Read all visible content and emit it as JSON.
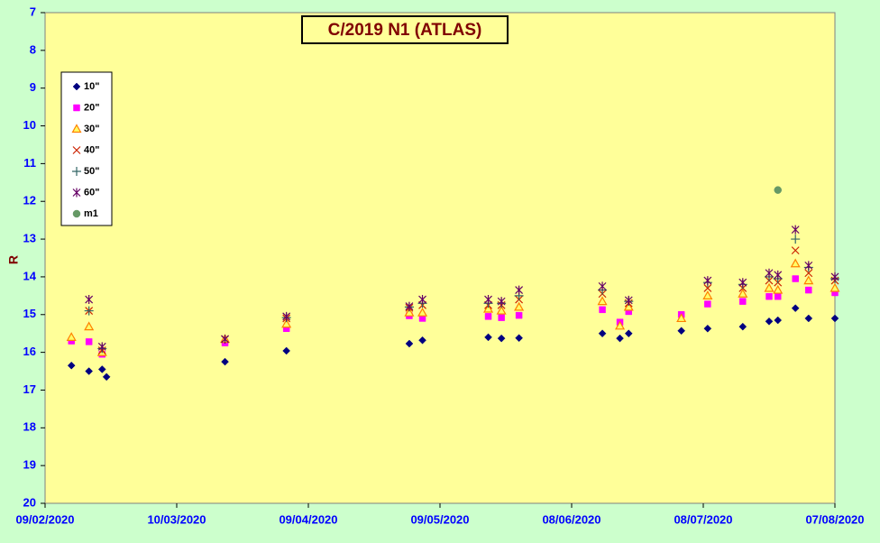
{
  "chart_data": {
    "type": "scatter",
    "title": "C/2019 N1 (ATLAS)",
    "y_label": "R",
    "x": [
      "2020-02-15",
      "2020-02-19",
      "2020-02-22",
      "2020-02-23",
      "2020-03-21",
      "2020-04-04",
      "2020-05-02",
      "2020-05-05",
      "2020-05-20",
      "2020-05-23",
      "2020-05-27",
      "2020-06-15",
      "2020-06-19",
      "2020-06-21",
      "2020-07-03",
      "2020-07-09",
      "2020-07-17",
      "2020-07-23",
      "2020-07-25",
      "2020-07-29",
      "2020-08-01",
      "2020-08-07"
    ],
    "series": [
      {
        "name": "10\"",
        "color": "#000080",
        "marker": "diamond",
        "values": [
          16.35,
          16.5,
          16.45,
          16.65,
          16.25,
          15.96,
          15.77,
          15.68,
          15.6,
          15.63,
          15.62,
          15.5,
          15.63,
          15.5,
          15.43,
          15.37,
          15.32,
          15.18,
          15.15,
          14.83,
          15.1,
          15.1
        ]
      },
      {
        "name": "20\"",
        "color": "#ff00ff",
        "marker": "square",
        "values": [
          15.7,
          15.72,
          16.05,
          null,
          15.75,
          15.37,
          15.03,
          15.1,
          15.05,
          15.08,
          15.02,
          14.87,
          15.2,
          14.92,
          15.0,
          14.72,
          14.65,
          14.52,
          14.52,
          14.05,
          14.35,
          14.42
        ]
      },
      {
        "name": "30\"",
        "color": "#ff8000",
        "marker": "triangle",
        "values": [
          15.6,
          15.32,
          16.0,
          null,
          15.65,
          15.25,
          14.95,
          14.95,
          14.85,
          14.9,
          14.8,
          14.65,
          15.3,
          14.8,
          15.1,
          14.5,
          14.45,
          14.3,
          14.35,
          13.65,
          14.1,
          14.3
        ]
      },
      {
        "name": "40\"",
        "color": "#cc2200",
        "marker": "x",
        "values": [
          null,
          14.9,
          15.95,
          null,
          15.65,
          15.1,
          14.82,
          14.75,
          14.75,
          14.75,
          14.6,
          14.45,
          null,
          14.7,
          null,
          14.3,
          14.3,
          14.1,
          14.15,
          13.3,
          13.9,
          14.1
        ]
      },
      {
        "name": "50\"",
        "color": "#336666",
        "marker": "plus",
        "values": [
          null,
          14.9,
          15.9,
          null,
          null,
          15.08,
          14.8,
          14.7,
          14.7,
          14.7,
          14.5,
          14.35,
          null,
          14.65,
          null,
          14.15,
          14.2,
          14.0,
          14.05,
          13.0,
          13.75,
          14.05
        ]
      },
      {
        "name": "60\"",
        "color": "#660066",
        "marker": "star",
        "values": [
          null,
          14.6,
          15.85,
          null,
          15.65,
          15.05,
          14.78,
          14.6,
          14.6,
          14.65,
          14.35,
          14.25,
          null,
          14.62,
          null,
          14.1,
          14.15,
          13.9,
          13.95,
          12.75,
          13.7,
          14.0
        ]
      },
      {
        "name": "m1",
        "color": "#669966",
        "marker": "circle",
        "values": [
          null,
          null,
          null,
          null,
          null,
          null,
          null,
          null,
          null,
          null,
          null,
          null,
          null,
          null,
          null,
          null,
          null,
          null,
          11.7,
          null,
          null,
          null
        ]
      }
    ],
    "xlim": [
      "2020-02-09",
      "2020-08-07"
    ],
    "xticks": [
      {
        "value": "2020-02-09",
        "label": "09/02/2020"
      },
      {
        "value": "2020-03-10",
        "label": "10/03/2020"
      },
      {
        "value": "2020-04-09",
        "label": "09/04/2020"
      },
      {
        "value": "2020-05-09",
        "label": "09/05/2020"
      },
      {
        "value": "2020-06-08",
        "label": "08/06/2020"
      },
      {
        "value": "2020-07-08",
        "label": "08/07/2020"
      },
      {
        "value": "2020-08-07",
        "label": "07/08/2020"
      }
    ],
    "ylim": [
      7,
      20
    ],
    "y_inverted": true,
    "yticks": [
      7,
      8,
      9,
      10,
      11,
      12,
      13,
      14,
      15,
      16,
      17,
      18,
      19,
      20
    ],
    "legend": "upper left"
  }
}
